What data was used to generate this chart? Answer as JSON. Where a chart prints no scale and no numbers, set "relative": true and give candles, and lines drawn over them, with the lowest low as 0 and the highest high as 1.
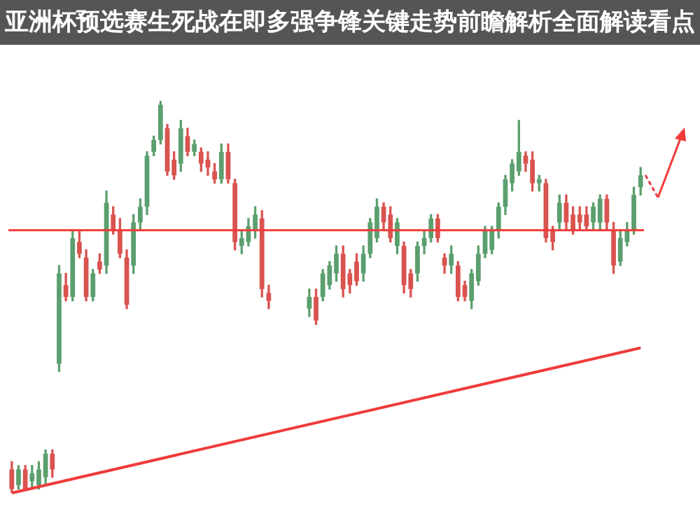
{
  "chart_data": {
    "type": "candlestick",
    "title": "亚洲杯预选赛生死战在即多强争锋关键走势前瞻解析全面解读看点",
    "relative": true,
    "categories": [
      null,
      null,
      null,
      null,
      null,
      null,
      null,
      null,
      null,
      null,
      null,
      null,
      null,
      null,
      null,
      null,
      null,
      null,
      null,
      null,
      null,
      null,
      null,
      null,
      null,
      null,
      null,
      null,
      null,
      null,
      null,
      null,
      null,
      null,
      null,
      null,
      null,
      null,
      null,
      null,
      null,
      null,
      null,
      null,
      null,
      null,
      null,
      null,
      null,
      null,
      null,
      null,
      null,
      null,
      null,
      null,
      null,
      null,
      null,
      null,
      null,
      null,
      null,
      null,
      null,
      null,
      null,
      null,
      null,
      null,
      null,
      null,
      null,
      null,
      null,
      null,
      null,
      null,
      null,
      null,
      null,
      null,
      null,
      null,
      null,
      null,
      null,
      null,
      null,
      null,
      null,
      null,
      null,
      null
    ],
    "ohlc": [
      [
        0.06,
        0.08,
        0,
        0.01
      ],
      [
        0.02,
        0.07,
        0.01,
        0.06
      ],
      [
        0.06,
        0.07,
        0.01,
        0.01
      ],
      [
        0.03,
        0.07,
        0.01,
        0.05
      ],
      [
        0.02,
        0.08,
        0.01,
        0.06
      ],
      [
        0.04,
        0.11,
        0.02,
        0.1
      ],
      [
        0.1,
        0.11,
        0.04,
        0.06
      ],
      [
        0.33,
        0.58,
        0.31,
        0.56
      ],
      [
        0.53,
        0.56,
        0.49,
        0.5
      ],
      [
        0.5,
        0.67,
        0.49,
        0.65
      ],
      [
        0.64,
        0.67,
        0.6,
        0.61
      ],
      [
        0.6,
        0.62,
        0.49,
        0.5
      ],
      [
        0.5,
        0.57,
        0.49,
        0.56
      ],
      [
        0.59,
        0.61,
        0.56,
        0.57
      ],
      [
        0.58,
        0.77,
        0.56,
        0.74
      ],
      [
        0.71,
        0.73,
        0.66,
        0.67
      ],
      [
        0.67,
        0.7,
        0.6,
        0.61
      ],
      [
        0.6,
        0.62,
        0.47,
        0.48
      ],
      [
        0.58,
        0.71,
        0.56,
        0.69
      ],
      [
        0.69,
        0.75,
        0.67,
        0.73
      ],
      [
        0.73,
        0.87,
        0.71,
        0.86
      ],
      [
        0.87,
        0.91,
        0.86,
        0.9
      ],
      [
        0.9,
        1,
        0.89,
        0.99
      ],
      [
        0.93,
        0.94,
        0.81,
        0.82
      ],
      [
        0.85,
        0.87,
        0.8,
        0.81
      ],
      [
        0.84,
        0.95,
        0.82,
        0.93
      ],
      [
        0.91,
        0.93,
        0.86,
        0.87
      ],
      [
        0.87,
        0.9,
        0.86,
        0.89
      ],
      [
        0.87,
        0.88,
        0.82,
        0.84
      ],
      [
        0.85,
        0.87,
        0.81,
        0.83
      ],
      [
        0.82,
        0.84,
        0.79,
        0.8
      ],
      [
        0.8,
        0.89,
        0.79,
        0.87
      ],
      [
        0.87,
        0.89,
        0.79,
        0.8
      ],
      [
        0.79,
        0.8,
        0.62,
        0.64
      ],
      [
        0.63,
        0.67,
        0.61,
        0.65
      ],
      [
        0.64,
        0.7,
        0.63,
        0.68
      ],
      [
        0.67,
        0.73,
        0.65,
        0.71
      ],
      [
        0.7,
        0.72,
        0.5,
        0.52
      ],
      [
        0.51,
        0.53,
        0.47,
        0.49
      ],
      null,
      null,
      null,
      null,
      null,
      [
        0.47,
        0.52,
        0.45,
        0.5
      ],
      [
        0.5,
        0.52,
        0.43,
        0.44
      ],
      [
        0.5,
        0.57,
        0.49,
        0.56
      ],
      [
        0.53,
        0.59,
        0.52,
        0.58
      ],
      [
        0.56,
        0.63,
        0.54,
        0.61
      ],
      [
        0.61,
        0.63,
        0.5,
        0.52
      ],
      [
        0.56,
        0.57,
        0.51,
        0.53
      ],
      [
        0.59,
        0.61,
        0.53,
        0.54
      ],
      [
        0.56,
        0.63,
        0.54,
        0.61
      ],
      [
        0.61,
        0.7,
        0.6,
        0.69
      ],
      [
        0.65,
        0.75,
        0.64,
        0.73
      ],
      [
        0.73,
        0.74,
        0.67,
        0.69
      ],
      [
        0.71,
        0.73,
        0.64,
        0.65
      ],
      [
        0.63,
        0.7,
        0.61,
        0.69
      ],
      [
        0.63,
        0.64,
        0.51,
        0.53
      ],
      [
        0.56,
        0.57,
        0.5,
        0.52
      ],
      [
        0.56,
        0.64,
        0.54,
        0.63
      ],
      [
        0.63,
        0.67,
        0.61,
        0.65
      ],
      [
        0.65,
        0.71,
        0.64,
        0.7
      ],
      [
        0.7,
        0.71,
        0.64,
        0.65
      ],
      [
        0.6,
        0.61,
        0.56,
        0.58
      ],
      [
        0.58,
        0.63,
        0.56,
        0.61
      ],
      [
        0.58,
        0.59,
        0.49,
        0.5
      ],
      [
        0.53,
        0.54,
        0.49,
        0.5
      ],
      [
        0.49,
        0.57,
        0.47,
        0.56
      ],
      [
        0.54,
        0.63,
        0.53,
        0.61
      ],
      [
        0.61,
        0.68,
        0.6,
        0.67
      ],
      [
        0.62,
        0.68,
        0.61,
        0.67
      ],
      [
        0.67,
        0.74,
        0.65,
        0.73
      ],
      [
        0.73,
        0.81,
        0.71,
        0.8
      ],
      [
        0.79,
        0.85,
        0.77,
        0.84
      ],
      [
        0.82,
        0.95,
        0.81,
        0.87
      ],
      [
        0.86,
        0.87,
        0.82,
        0.84
      ],
      [
        0.85,
        0.87,
        0.77,
        0.79
      ],
      [
        0.79,
        0.81,
        0.77,
        0.8
      ],
      [
        0.79,
        0.8,
        0.64,
        0.65
      ],
      [
        0.67,
        0.68,
        0.62,
        0.64
      ],
      [
        0.69,
        0.76,
        0.67,
        0.74
      ],
      [
        0.74,
        0.76,
        0.67,
        0.69
      ],
      [
        0.71,
        0.73,
        0.66,
        0.67
      ],
      [
        0.71,
        0.73,
        0.67,
        0.69
      ],
      [
        0.71,
        0.73,
        0.67,
        0.68
      ],
      [
        0.69,
        0.74,
        0.67,
        0.73
      ],
      [
        0.69,
        0.76,
        0.67,
        0.75
      ],
      [
        0.75,
        0.76,
        0.67,
        0.69
      ],
      [
        0.67,
        0.69,
        0.56,
        0.58
      ],
      [
        0.59,
        0.67,
        0.58,
        0.65
      ],
      [
        0.64,
        0.69,
        0.63,
        0.67
      ],
      [
        0.67,
        0.78,
        0.66,
        0.76
      ],
      [
        0.78,
        0.83,
        0.76,
        0.81
      ]
    ],
    "colors": [
      "#d9534f",
      "#5b9f6e",
      "#d9534f",
      "#5b9f6e",
      "#5b9f6e",
      "#5b9f6e",
      "#d9534f",
      "#5b9f6e",
      "#d9534f",
      "#5b9f6e",
      "#d9534f",
      "#d9534f",
      "#5b9f6e",
      "#d9534f",
      "#5b9f6e",
      "#d9534f",
      "#d9534f",
      "#d9534f",
      "#5b9f6e",
      "#5b9f6e",
      "#5b9f6e",
      "#5b9f6e",
      "#5b9f6e",
      "#d9534f",
      "#d9534f",
      "#5b9f6e",
      "#d9534f",
      "#5b9f6e",
      "#d9534f",
      "#d9534f",
      "#d9534f",
      "#5b9f6e",
      "#d9534f",
      "#d9534f",
      "#5b9f6e",
      "#5b9f6e",
      "#5b9f6e",
      "#d9534f",
      "#d9534f",
      null,
      null,
      null,
      null,
      null,
      "#5b9f6e",
      "#d9534f",
      "#5b9f6e",
      "#5b9f6e",
      "#5b9f6e",
      "#d9534f",
      "#d9534f",
      "#d9534f",
      "#5b9f6e",
      "#5b9f6e",
      "#5b9f6e",
      "#d9534f",
      "#d9534f",
      "#5b9f6e",
      "#d9534f",
      "#d9534f",
      "#5b9f6e",
      "#5b9f6e",
      "#5b9f6e",
      "#d9534f",
      "#d9534f",
      "#5b9f6e",
      "#d9534f",
      "#d9534f",
      "#5b9f6e",
      "#5b9f6e",
      "#5b9f6e",
      "#5b9f6e",
      "#5b9f6e",
      "#5b9f6e",
      "#5b9f6e",
      "#5b9f6e",
      "#d9534f",
      "#d9534f",
      "#5b9f6e",
      "#d9534f",
      "#d9534f",
      "#5b9f6e",
      "#d9534f",
      "#d9534f",
      "#d9534f",
      "#d9534f",
      "#5b9f6e",
      "#5b9f6e",
      "#d9534f",
      "#d9534f",
      "#5b9f6e",
      "#5b9f6e",
      "#5b9f6e",
      "#5b9f6e"
    ],
    "series": [
      {
        "type": "line",
        "color": "#f03a3a",
        "values": [
          0,
          null,
          null,
          null,
          null,
          null,
          null,
          null,
          null,
          null,
          null,
          null,
          null,
          null,
          null,
          null,
          null,
          null,
          null,
          null,
          null,
          null,
          null,
          null,
          null,
          null,
          null,
          null,
          null,
          null,
          null,
          null,
          null,
          null,
          null,
          null,
          null,
          null,
          null,
          null,
          null,
          null,
          null,
          null,
          null,
          null,
          null,
          null,
          null,
          null,
          null,
          null,
          null,
          null,
          null,
          null,
          null,
          null,
          null,
          null,
          null,
          null,
          null,
          null,
          null,
          null,
          null,
          null,
          null,
          null,
          null,
          null,
          null,
          null,
          null,
          null,
          null,
          null,
          null,
          null,
          null,
          null,
          null,
          null,
          null,
          null,
          null,
          null,
          null,
          null,
          null,
          null,
          null,
          0.37
        ]
      }
    ],
    "ref_lines": [
      {
        "axis": "y",
        "value": 0.67,
        "color": "#f03a3a"
      }
    ]
  }
}
